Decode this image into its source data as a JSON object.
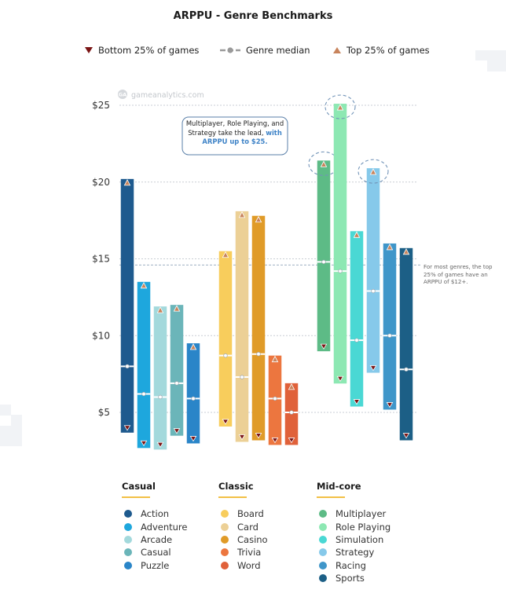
{
  "title": "ARPPU - Genre Benchmarks",
  "legend": {
    "bottom": "Bottom 25% of games",
    "median": "Genre median",
    "top": "Top 25% of games"
  },
  "watermark": "gameanalytics.com",
  "watermark_badge": "GA",
  "annotations": {
    "callout": {
      "plain": "Multiplayer, Role Playing, and Strategy take the lead, ",
      "bold": "with ARPPU up to $25."
    },
    "side_note": "For most genres, the top 25% of games have an ARPPU of $12+."
  },
  "colors": {
    "top_marker": "#c8845c",
    "bottom_marker": "#7a1414",
    "median_line": "#ffffff",
    "group_underline": "#f2c045",
    "callout_border": "#5a7fa8",
    "callout_highlight": "#3e83c7"
  },
  "chart_data": {
    "type": "bar",
    "subtype": "range-bar",
    "y_unit": "$",
    "ylim": [
      3,
      26.5
    ],
    "yticks": [
      5,
      10,
      15,
      20,
      25
    ],
    "ytick_labels": [
      "$5",
      "$10",
      "$15",
      "$20",
      "$25"
    ],
    "grid": true,
    "legend_position": "top",
    "reference_line": 14.6,
    "groups": [
      {
        "name": "Casual",
        "genres": [
          {
            "name": "Action",
            "color": "#1e5a8e",
            "bottom": 4.5,
            "median": 8.0,
            "top": 20.2
          },
          {
            "name": "Adventure",
            "color": "#1ea7dd",
            "bottom": 3.5,
            "median": 6.2,
            "top": 13.5
          },
          {
            "name": "Arcade",
            "color": "#a3d9dc",
            "bottom": 3.4,
            "median": 6.0,
            "top": 11.9
          },
          {
            "name": "Casual",
            "color": "#6bb5b9",
            "bottom": 4.3,
            "median": 6.9,
            "top": 12.0
          },
          {
            "name": "Puzzle",
            "color": "#2a85c8",
            "bottom": 3.8,
            "median": 5.9,
            "top": 9.5
          }
        ]
      },
      {
        "name": "Classic",
        "genres": [
          {
            "name": "Board",
            "color": "#f8cd5c",
            "bottom": 4.9,
            "median": 8.7,
            "top": 15.5
          },
          {
            "name": "Card",
            "color": "#ecd096",
            "bottom": 3.9,
            "median": 7.3,
            "top": 18.1
          },
          {
            "name": "Casino",
            "color": "#e09b28",
            "bottom": 4.0,
            "median": 8.8,
            "top": 17.8
          },
          {
            "name": "Trivia",
            "color": "#ec763f",
            "bottom": 3.7,
            "median": 5.9,
            "top": 8.7
          },
          {
            "name": "Word",
            "color": "#e0613a",
            "bottom": 3.7,
            "median": 5.0,
            "top": 6.9
          }
        ]
      },
      {
        "name": "Mid-core",
        "genres": [
          {
            "name": "Multiplayer",
            "color": "#5dbb86",
            "bottom": 9.8,
            "median": 14.8,
            "top": 21.4
          },
          {
            "name": "Role Playing",
            "color": "#8de8b3",
            "bottom": 7.7,
            "median": 14.2,
            "top": 25.1
          },
          {
            "name": "Simulation",
            "color": "#4ad8d4",
            "bottom": 6.2,
            "median": 9.7,
            "top": 16.8
          },
          {
            "name": "Strategy",
            "color": "#86c9ea",
            "bottom": 8.4,
            "median": 12.9,
            "top": 20.9
          },
          {
            "name": "Racing",
            "color": "#3f96c9",
            "bottom": 6.0,
            "median": 10.0,
            "top": 16.0
          },
          {
            "name": "Sports",
            "color": "#1c5f86",
            "bottom": 4.0,
            "median": 7.8,
            "top": 15.7
          }
        ]
      }
    ],
    "highlighted": [
      "Multiplayer",
      "Role Playing",
      "Strategy"
    ]
  }
}
